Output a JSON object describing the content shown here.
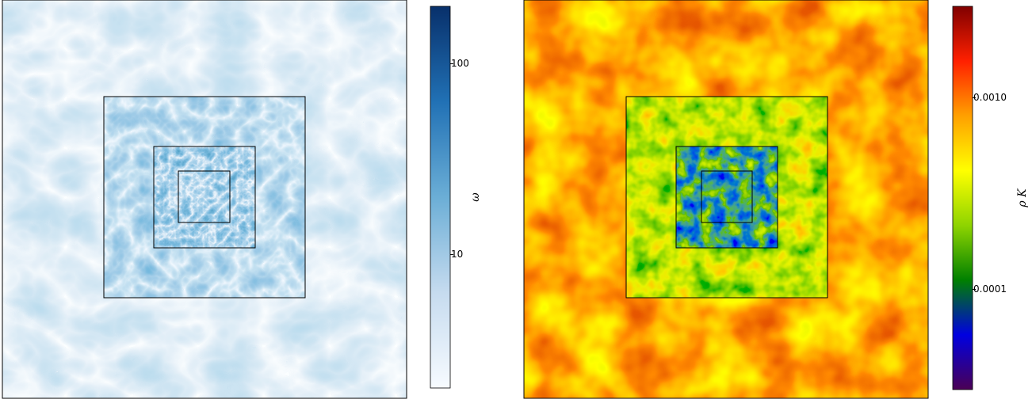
{
  "chart_data": [
    {
      "type": "heatmap",
      "colorbar_label": "ω",
      "colorbar_scale": "log",
      "clim": [
        2,
        200
      ],
      "colorbar_ticks": [
        10,
        100
      ],
      "colormap": [
        "#f7fbff",
        "#c6dbef",
        "#6baed6",
        "#2171b5",
        "#08306b"
      ]
    },
    {
      "type": "heatmap",
      "colorbar_label": "ρ K",
      "colorbar_scale": "log",
      "clim": [
        3e-05,
        0.003
      ],
      "colorbar_ticks": [
        0.0001,
        {
          "value": 0.001,
          "label": "0.0010"
        }
      ],
      "colormap": [
        "#4b0055",
        "#0000e0",
        "#008000",
        "#8fd400",
        "#ffff00",
        "#ffa000",
        "#ff2000",
        "#800000"
      ]
    }
  ]
}
